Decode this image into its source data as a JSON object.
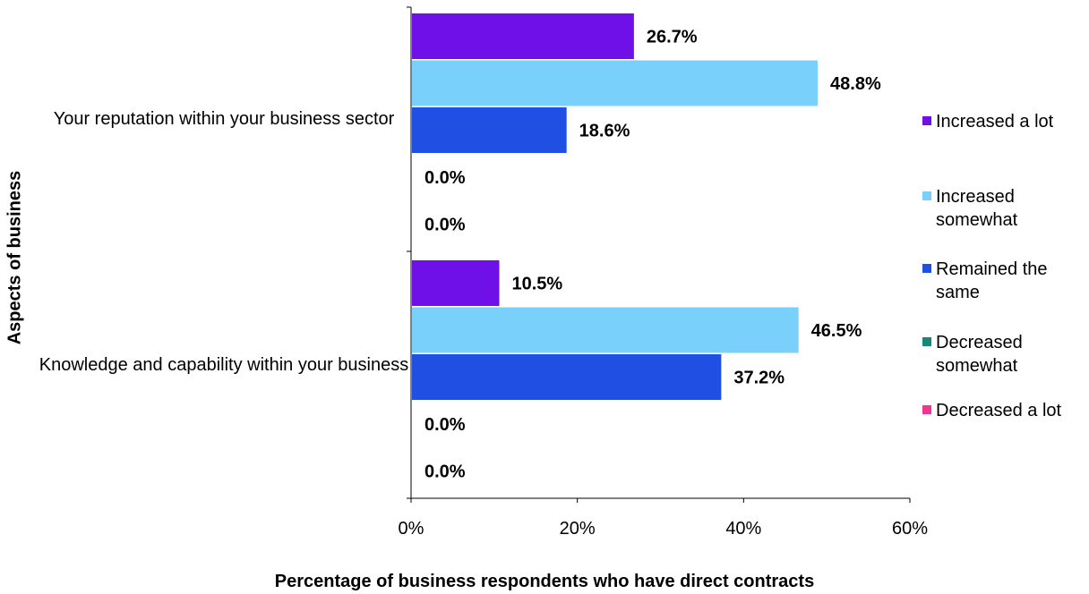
{
  "chart_data": {
    "type": "bar",
    "orientation": "horizontal",
    "title": "",
    "xlabel": "Percentage of business respondents who have direct contracts",
    "ylabel": "Aspects of business",
    "xlim": [
      0,
      60
    ],
    "x_ticks": [
      "0%",
      "20%",
      "40%",
      "60%"
    ],
    "grid": false,
    "legend_position": "right",
    "categories": [
      "Your reputation within your business sector",
      "Knowledge and capability within your business"
    ],
    "series": [
      {
        "name": "Increased a lot",
        "color": "#7010E8",
        "values": [
          26.7,
          10.5
        ],
        "labels": [
          "26.7%",
          "10.5%"
        ]
      },
      {
        "name": "Increased somewhat",
        "color": "#79D0FB",
        "values": [
          48.8,
          46.5
        ],
        "labels": [
          "48.8%",
          "46.5%"
        ]
      },
      {
        "name": "Remained the same",
        "color": "#1F4FE3",
        "values": [
          18.6,
          37.2
        ],
        "labels": [
          "18.6%",
          "37.2%"
        ]
      },
      {
        "name": "Decreased somewhat",
        "color": "#14897A",
        "values": [
          0.0,
          0.0
        ],
        "labels": [
          "0.0%",
          "0.0%"
        ]
      },
      {
        "name": "Decreased a lot",
        "color": "#F2358F",
        "values": [
          0.0,
          0.0
        ],
        "labels": [
          "0.0%",
          "0.0%"
        ]
      }
    ]
  }
}
